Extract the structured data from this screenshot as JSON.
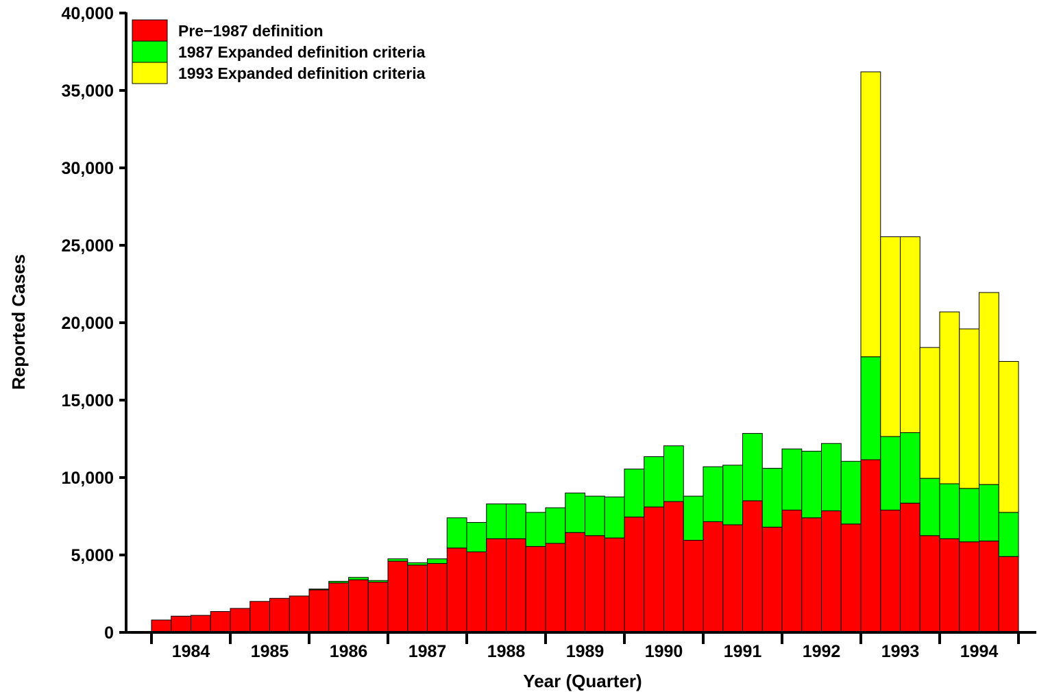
{
  "chart_data": {
    "type": "bar",
    "stacked": true,
    "title": "",
    "xlabel": "Year  (Quarter)",
    "ylabel": "Reported  Cases",
    "ylim": [
      0,
      40000
    ],
    "yticks": [
      0,
      5000,
      10000,
      15000,
      20000,
      25000,
      30000,
      35000,
      40000
    ],
    "ytick_labels": [
      "0",
      "5,000",
      "10,000",
      "15,000",
      "20,000",
      "25,000",
      "30,000",
      "35,000",
      "40,000"
    ],
    "year_labels": [
      "1984",
      "1985",
      "1986",
      "1987",
      "1988",
      "1989",
      "1990",
      "1991",
      "1992",
      "1993",
      "1994"
    ],
    "categories": [
      "1984 Q1",
      "1984 Q2",
      "1984 Q3",
      "1984 Q4",
      "1985 Q1",
      "1985 Q2",
      "1985 Q3",
      "1985 Q4",
      "1986 Q1",
      "1986 Q2",
      "1986 Q3",
      "1986 Q4",
      "1987 Q1",
      "1987 Q2",
      "1987 Q3",
      "1987 Q4",
      "1988 Q1",
      "1988 Q2",
      "1988 Q3",
      "1988 Q4",
      "1989 Q1",
      "1989 Q2",
      "1989 Q3",
      "1989 Q4",
      "1990 Q1",
      "1990 Q2",
      "1990 Q3",
      "1990 Q4",
      "1991 Q1",
      "1991 Q2",
      "1991 Q3",
      "1991 Q4",
      "1992 Q1",
      "1992 Q2",
      "1992 Q3",
      "1992 Q4",
      "1993 Q1",
      "1993 Q2",
      "1993 Q3",
      "1993 Q4",
      "1994 Q1",
      "1994 Q2",
      "1994 Q3",
      "1994 Q4"
    ],
    "series": [
      {
        "name": "Pre−1987  definition",
        "color": "#ff0000",
        "values": [
          800,
          1050,
          1100,
          1350,
          1550,
          2000,
          2200,
          2350,
          2750,
          3200,
          3400,
          3250,
          4600,
          4350,
          4450,
          5450,
          5200,
          6050,
          6050,
          5550,
          5750,
          6450,
          6250,
          6100,
          7450,
          8100,
          8450,
          5950,
          7150,
          6950,
          8500,
          6800,
          7900,
          7400,
          7850,
          7000,
          11150,
          7900,
          8350,
          6250,
          6050,
          5850,
          5900,
          4900
        ]
      },
      {
        "name": "1987  Expanded  definition  criteria",
        "color": "#00ff00",
        "values": [
          0,
          0,
          0,
          0,
          0,
          0,
          0,
          0,
          50,
          100,
          150,
          100,
          150,
          150,
          300,
          1950,
          1900,
          2250,
          2250,
          2200,
          2300,
          2550,
          2550,
          2650,
          3100,
          3250,
          3600,
          2850,
          3550,
          3850,
          4350,
          3800,
          3950,
          4300,
          4350,
          4050,
          6650,
          4750,
          4550,
          3700,
          3550,
          3450,
          3650,
          2850
        ]
      },
      {
        "name": "1993  Expanded  definition  criteria",
        "color": "#ffff00",
        "values": [
          0,
          0,
          0,
          0,
          0,
          0,
          0,
          0,
          0,
          0,
          0,
          0,
          0,
          0,
          0,
          0,
          0,
          0,
          0,
          0,
          0,
          0,
          0,
          0,
          0,
          0,
          0,
          0,
          0,
          0,
          0,
          0,
          0,
          0,
          0,
          0,
          18400,
          12900,
          12650,
          8450,
          11100,
          10300,
          12400,
          9750
        ]
      }
    ],
    "legend_position": "top-left",
    "grid": false
  }
}
